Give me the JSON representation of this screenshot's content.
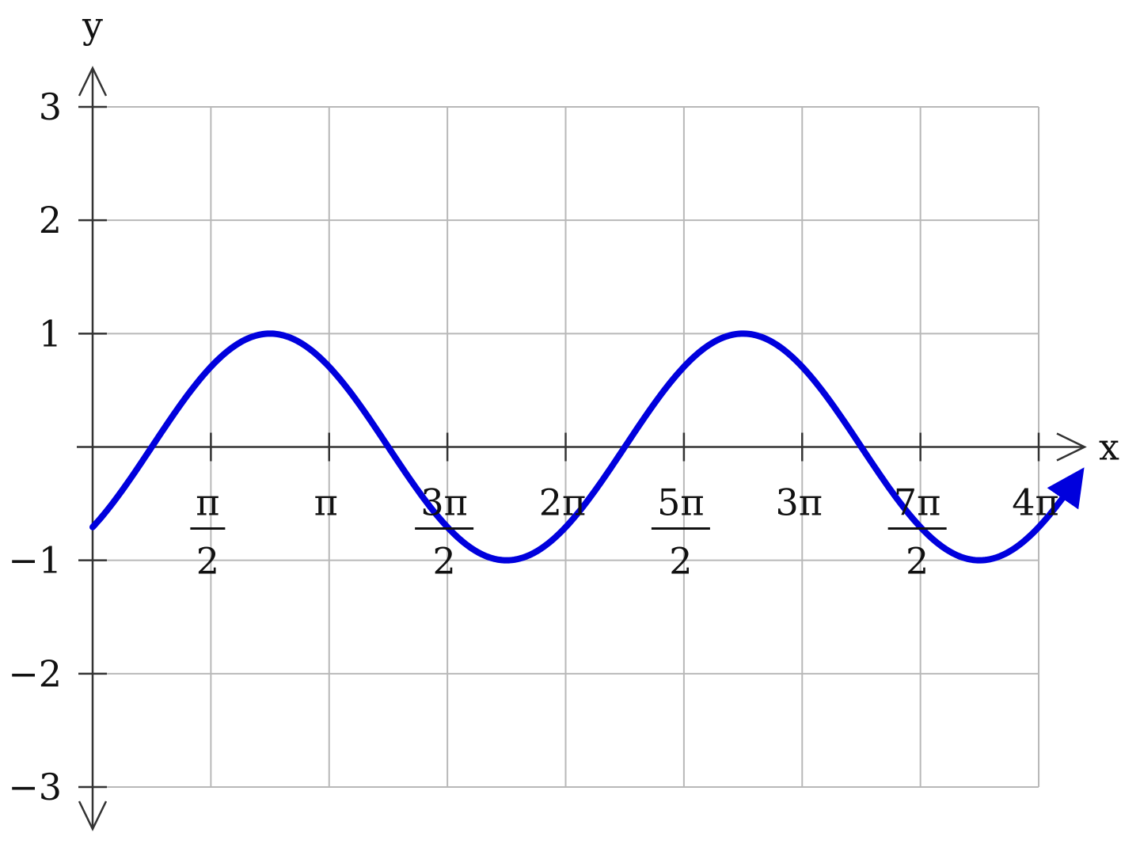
{
  "chart_data": {
    "type": "line",
    "title": "",
    "xlabel": "x",
    "ylabel": "y",
    "xlim": [
      0,
      12.566
    ],
    "ylim": [
      -3,
      3
    ],
    "grid": true,
    "x_ticks": [
      {
        "value": 1.5708,
        "num": "π",
        "den": "2"
      },
      {
        "value": 3.1416,
        "label": "π"
      },
      {
        "value": 4.7124,
        "num": "3π",
        "den": "2"
      },
      {
        "value": 6.2832,
        "label": "2π"
      },
      {
        "value": 7.854,
        "num": "5π",
        "den": "2"
      },
      {
        "value": 9.4248,
        "label": "3π"
      },
      {
        "value": 10.9956,
        "num": "7π",
        "den": "2"
      },
      {
        "value": 12.5664,
        "label": "4π"
      }
    ],
    "y_ticks": [
      {
        "value": 3,
        "label": "3"
      },
      {
        "value": 2,
        "label": "2"
      },
      {
        "value": 1,
        "label": "1"
      },
      {
        "value": -1,
        "label": "−1"
      },
      {
        "value": -2,
        "label": "−2"
      },
      {
        "value": -3,
        "label": "−3"
      }
    ],
    "series": [
      {
        "color": "#0000dd",
        "function": "sin(x - π/4)",
        "x_start": 0,
        "x_end": 13.1,
        "end_arrow": true,
        "points": [
          [
            0,
            -0.707
          ],
          [
            0.785,
            0
          ],
          [
            2.356,
            1
          ],
          [
            3.927,
            0
          ],
          [
            5.498,
            -1
          ],
          [
            7.069,
            0
          ],
          [
            8.639,
            1
          ],
          [
            10.21,
            0
          ],
          [
            11.781,
            -1
          ],
          [
            12.566,
            -0.707
          ]
        ]
      }
    ]
  }
}
